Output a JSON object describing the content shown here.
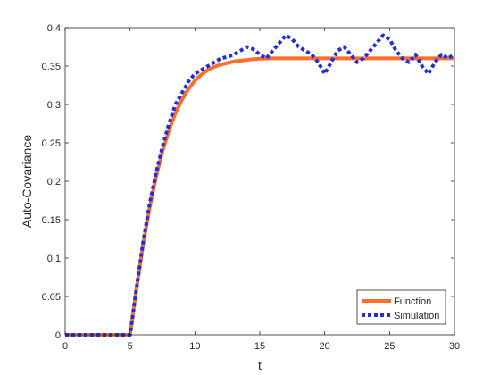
{
  "chart_data": {
    "type": "line",
    "title": "",
    "xlabel": "t",
    "ylabel": "Auto-Covariance",
    "xlim": [
      0,
      30
    ],
    "ylim": [
      0,
      0.4
    ],
    "xticks": [
      0,
      5,
      10,
      15,
      20,
      25,
      30
    ],
    "xtick_labels": [
      "0",
      "5",
      "10",
      "15",
      "20",
      "25",
      "30"
    ],
    "yticks": [
      0,
      0.05,
      0.1,
      0.15,
      0.2,
      0.25,
      0.3,
      0.35,
      0.4
    ],
    "ytick_labels": [
      "0",
      "0.05",
      "0.1",
      "0.15",
      "0.2",
      "0.25",
      "0.3",
      "0.35",
      "0.4"
    ],
    "grid": false,
    "legend_position": "bottom-right",
    "series": [
      {
        "name": "Function",
        "color": "#ff6f2a",
        "style": "solid",
        "x": [
          0,
          5,
          5.5,
          6,
          6.5,
          7,
          7.5,
          8,
          8.5,
          9,
          9.5,
          10,
          10.5,
          11,
          11.5,
          12,
          12.5,
          13,
          13.5,
          14,
          14.5,
          15,
          16,
          17,
          18,
          20,
          22,
          24,
          26,
          28,
          30
        ],
        "y": [
          0,
          0,
          0.061,
          0.117,
          0.165,
          0.205,
          0.239,
          0.266,
          0.289,
          0.306,
          0.32,
          0.331,
          0.339,
          0.345,
          0.349,
          0.352,
          0.354,
          0.356,
          0.357,
          0.358,
          0.359,
          0.3595,
          0.36,
          0.36,
          0.36,
          0.36,
          0.36,
          0.36,
          0.36,
          0.36,
          0.36
        ]
      },
      {
        "name": "Simulation",
        "color": "#1f2fe0",
        "style": "dotted",
        "x": [
          0,
          5,
          5.5,
          6,
          6.5,
          7,
          7.5,
          8,
          8.5,
          9,
          9.5,
          10,
          10.5,
          11,
          11.5,
          12,
          12.5,
          13,
          13.5,
          14,
          14.5,
          15,
          15.5,
          16,
          16.5,
          17,
          17.5,
          18,
          18.5,
          19,
          19.5,
          20,
          20.5,
          21,
          21.5,
          22,
          22.5,
          23,
          23.5,
          24,
          24.5,
          25,
          25.5,
          26,
          26.5,
          27,
          27.5,
          28,
          28.5,
          29,
          29.5,
          30
        ],
        "y": [
          0,
          0,
          0.06,
          0.12,
          0.17,
          0.21,
          0.245,
          0.275,
          0.3,
          0.315,
          0.33,
          0.34,
          0.345,
          0.35,
          0.355,
          0.36,
          0.362,
          0.365,
          0.37,
          0.375,
          0.372,
          0.365,
          0.36,
          0.37,
          0.38,
          0.39,
          0.385,
          0.375,
          0.37,
          0.365,
          0.355,
          0.34,
          0.355,
          0.37,
          0.375,
          0.365,
          0.355,
          0.36,
          0.37,
          0.38,
          0.39,
          0.385,
          0.37,
          0.36,
          0.355,
          0.365,
          0.35,
          0.34,
          0.355,
          0.365,
          0.36,
          0.365
        ]
      }
    ]
  }
}
